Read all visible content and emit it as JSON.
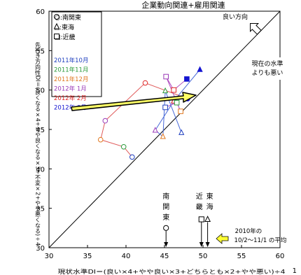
{
  "chart_data": {
    "type": "scatter",
    "title": "企業動向関連+雇用関連",
    "xlabel": "現状水準DI＝(良い×4+やや良い×3+どちらとも×2+やや悪い)÷4",
    "ylabel": "先行き方向性DI＝(良くなる×4+やや良くなる×3+不変×2+やや悪くなる)÷4",
    "xlim": [
      30,
      60
    ],
    "ylim": [
      30,
      60
    ],
    "xticks": [
      "30",
      "35",
      "40",
      "45",
      "50",
      "55",
      "60"
    ],
    "yticks": [
      "30",
      "35",
      "40",
      "45",
      "50",
      "55",
      "60"
    ],
    "grid": false,
    "diagonal": "y=x",
    "legend_markers": [
      {
        "symbol": "circle",
        "label": "○:南関東"
      },
      {
        "symbol": "triangle",
        "label": "△:東海"
      },
      {
        "symbol": "square",
        "label": "□:近畿"
      }
    ],
    "legend_months": [
      {
        "label": "2011年10月",
        "color": "#1f3fbf"
      },
      {
        "label": "2011年11月",
        "color": "#2a9a3a"
      },
      {
        "label": "2011年12月",
        "color": "#e07820"
      },
      {
        "label": "2012年 1月",
        "color": "#9a3ab8"
      },
      {
        "label": "2012年 2月",
        "color": "#e02828"
      },
      {
        "label": "2012年 3月",
        "color": "#1515d0"
      }
    ],
    "series": [
      {
        "name": "南関東",
        "marker": "circle",
        "line_color": "#e05a5a",
        "points": [
          {
            "x": 40.8,
            "y": 41.5,
            "color": "#1f3fbf"
          },
          {
            "x": 39.7,
            "y": 42.8,
            "color": "#2a9a3a"
          },
          {
            "x": 36.7,
            "y": 43.7,
            "color": "#e07820"
          },
          {
            "x": 37.3,
            "y": 46.1,
            "color": "#9a3ab8"
          },
          {
            "x": 42.5,
            "y": 50.9,
            "color": "#e02828"
          },
          {
            "x": 48.0,
            "y": 48.9,
            "color": "#1515d0",
            "filled": true
          }
        ]
      },
      {
        "name": "東海",
        "marker": "triangle",
        "line_color": "#4a6ad8",
        "points": [
          {
            "x": 47.2,
            "y": 44.6,
            "color": "#1f3fbf"
          },
          {
            "x": 45.1,
            "y": 49.9,
            "color": "#2a9a3a"
          },
          {
            "x": 44.8,
            "y": 44.1,
            "color": "#e07820"
          },
          {
            "x": 43.8,
            "y": 44.9,
            "color": "#9a3ab8"
          },
          {
            "x": 46.2,
            "y": 48.6,
            "color": "#e02828"
          },
          {
            "x": 49.6,
            "y": 52.6,
            "color": "#1515d0",
            "filled": true
          }
        ]
      },
      {
        "name": "近畿",
        "marker": "square",
        "line_color": "#b050c0",
        "points": [
          {
            "x": 45.1,
            "y": 47.8,
            "color": "#1f3fbf"
          },
          {
            "x": 46.6,
            "y": 48.4,
            "color": "#2a9a3a"
          },
          {
            "x": 47.1,
            "y": 47.3,
            "color": "#e07820"
          },
          {
            "x": 45.2,
            "y": 51.7,
            "color": "#9a3ab8"
          },
          {
            "x": 46.2,
            "y": 50.0,
            "color": "#e02828"
          },
          {
            "x": 47.9,
            "y": 51.4,
            "color": "#1515d0",
            "filled": true
          }
        ]
      }
    ],
    "annotations": {
      "good_direction": "良い方向",
      "below_current": [
        "現在の水準",
        "よりも悪い"
      ],
      "base_period": [
        "2010年の",
        "10/2～11/1 の平均"
      ],
      "corner_mark": "1",
      "baseline_markers": [
        {
          "label": [
            "南",
            "関",
            "東"
          ],
          "symbol": "circle",
          "x": 45.2,
          "y": 32.5
        },
        {
          "label": [
            "近",
            "畿"
          ],
          "symbol": "square",
          "x": 49.8,
          "y": 33.6
        },
        {
          "label": [
            "東",
            "海"
          ],
          "symbol": "triangle",
          "x": 50.6,
          "y": 33.6
        }
      ]
    }
  }
}
